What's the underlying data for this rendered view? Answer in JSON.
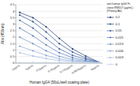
{
  "chart_data": {
    "type": "line",
    "annotations": [
      "anti-human IgG4 Fc",
      "clone#RM117 (μg/mL)",
      "(Primary Ab)"
    ],
    "x_label": "Human IgG4 (50uL/well coating plate)",
    "y_label": "Abs (450nm)",
    "categories": [
      "2μg/mL",
      "1μg/mL",
      "0.5μg/mL",
      "0.25μg/mL",
      "0.125μg/mL",
      "0.0625μg/mL",
      "0μg/mL"
    ],
    "series": [
      {
        "name": "0.2",
        "color": "#1f3a6e",
        "values": [
          3.9,
          3.5,
          2.8,
          1.9,
          1.1,
          0.55,
          0.08
        ]
      },
      {
        "name": "0.1",
        "color": "#2d4f8c",
        "values": [
          3.7,
          3.2,
          2.4,
          1.5,
          0.85,
          0.4,
          0.07
        ]
      },
      {
        "name": "0.05",
        "color": "#3d64a6",
        "values": [
          3.3,
          2.7,
          1.9,
          1.1,
          0.6,
          0.3,
          0.06
        ]
      },
      {
        "name": "0.025",
        "color": "#5479b8",
        "values": [
          2.7,
          2.1,
          1.4,
          0.8,
          0.42,
          0.2,
          0.05
        ]
      },
      {
        "name": "0.013",
        "color": "#6e90c6",
        "values": [
          2.0,
          1.5,
          0.95,
          0.52,
          0.28,
          0.14,
          0.05
        ]
      },
      {
        "name": "0.006",
        "color": "#8ba7d3",
        "values": [
          1.3,
          0.95,
          0.6,
          0.33,
          0.18,
          0.1,
          0.05
        ]
      },
      {
        "name": "0.003",
        "color": "#a6bcdf",
        "values": [
          0.8,
          0.55,
          0.35,
          0.2,
          0.11,
          0.07,
          0.05
        ]
      },
      {
        "name": "0",
        "color": "#c2d2ea",
        "values": [
          0.05,
          0.05,
          0.05,
          0.05,
          0.05,
          0.05,
          0.05
        ]
      }
    ],
    "ylim": [
      0,
      4.5
    ],
    "yticks": [
      0,
      0.5,
      1,
      1.5,
      2,
      2.5,
      3,
      3.5,
      4,
      4.5
    ],
    "grid": true,
    "marker": "diamond",
    "legend": "right"
  }
}
